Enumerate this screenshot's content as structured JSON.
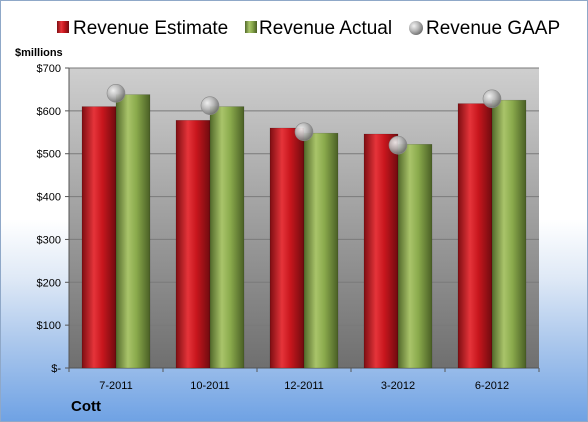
{
  "colors": {
    "estimate": "#c8161d",
    "actual": "#8aaa4c",
    "gaap": "#a6a6a6",
    "plot_bg_top": "#cfcfcf",
    "plot_bg_bottom": "#6f6f6f"
  },
  "chart_data": {
    "type": "bar",
    "categories": [
      "7-2011",
      "10-2011",
      "12-2011",
      "3-2012",
      "6-2012"
    ],
    "series": [
      {
        "name": "Revenue Estimate",
        "kind": "bar",
        "values": [
          610,
          578,
          560,
          546,
          617
        ]
      },
      {
        "name": "Revenue Actual",
        "kind": "bar",
        "values": [
          638,
          610,
          548,
          522,
          625
        ]
      },
      {
        "name": "Revenue GAAP",
        "kind": "point",
        "values": [
          641,
          612,
          551,
          520,
          628
        ]
      }
    ],
    "ylabel": "$millions",
    "ylim": [
      0,
      700
    ],
    "yticks": [
      0,
      100,
      200,
      300,
      400,
      500,
      600,
      700
    ],
    "ytick_labels": [
      "$-",
      "$100",
      "$200",
      "$300",
      "$400",
      "$500",
      "$600",
      "$700"
    ],
    "grid": true,
    "legend_position": "top",
    "caption": "Cott"
  }
}
